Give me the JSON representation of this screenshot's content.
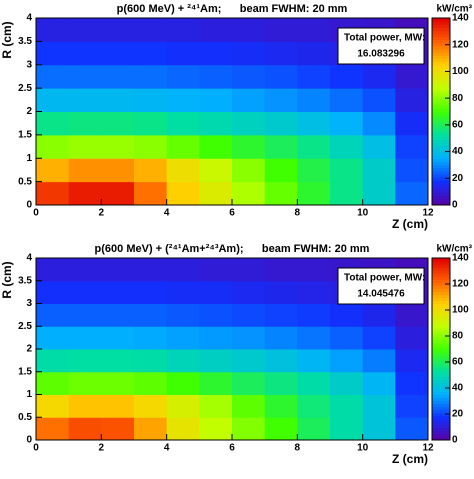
{
  "chart_data": [
    {
      "type": "heatmap",
      "title": "p(600 MeV) + ²⁴¹Am;      beam FWHM: 20 mm",
      "xlabel": "Z (cm)",
      "ylabel": "R (cm)",
      "zlabel": "kW/cm³",
      "xlim": [
        0,
        12
      ],
      "ylim": [
        0,
        4
      ],
      "zlim": [
        0,
        140
      ],
      "xticks": [
        0,
        2,
        4,
        6,
        8,
        10,
        12
      ],
      "yticks": [
        0,
        0.5,
        1,
        1.5,
        2,
        2.5,
        3,
        3.5,
        4
      ],
      "zticks": [
        0,
        20,
        40,
        60,
        80,
        100,
        120,
        140
      ],
      "annotation": {
        "label": "Total power, MW:",
        "value": 16.083296
      },
      "colormap": [
        "#5a00a0",
        "#1030ff",
        "#00b0ff",
        "#00e0a0",
        "#40ff00",
        "#c0ff00",
        "#ffd000",
        "#ff6000",
        "#e00000"
      ],
      "z": [
        [
          130,
          135,
          135,
          120,
          105,
          95,
          85,
          75,
          65,
          55,
          45,
          25
        ],
        [
          110,
          115,
          115,
          110,
          100,
          90,
          80,
          70,
          62,
          55,
          45,
          22
        ],
        [
          80,
          82,
          82,
          80,
          75,
          70,
          65,
          60,
          55,
          48,
          40,
          20
        ],
        [
          55,
          56,
          56,
          55,
          52,
          50,
          47,
          44,
          40,
          36,
          30,
          16
        ],
        [
          38,
          38,
          38,
          37,
          36,
          35,
          33,
          31,
          29,
          26,
          22,
          12
        ],
        [
          26,
          26,
          26,
          26,
          25,
          24,
          23,
          22,
          20,
          18,
          15,
          9
        ],
        [
          18,
          18,
          18,
          18,
          17,
          17,
          16,
          15,
          14,
          13,
          10,
          7
        ],
        [
          12,
          12,
          12,
          12,
          12,
          11,
          11,
          10,
          10,
          9,
          8,
          5
        ]
      ]
    },
    {
      "type": "heatmap",
      "title": "p(600 MeV) + (²⁴¹Am+²⁴³Am);      beam FWHM: 20 mm",
      "xlabel": "Z (cm)",
      "ylabel": "R (cm)",
      "zlabel": "kW/cm³",
      "xlim": [
        0,
        12
      ],
      "ylim": [
        0,
        4
      ],
      "zlim": [
        0,
        140
      ],
      "xticks": [
        0,
        2,
        4,
        6,
        8,
        10,
        12
      ],
      "yticks": [
        0,
        0.5,
        1,
        1.5,
        2,
        2.5,
        3,
        3.5,
        4
      ],
      "zticks": [
        0,
        20,
        40,
        60,
        80,
        100,
        120,
        140
      ],
      "annotation": {
        "label": "Total power, MW:",
        "value": 14.045476
      },
      "colormap": [
        "#5a00a0",
        "#1030ff",
        "#00b0ff",
        "#00e0a0",
        "#40ff00",
        "#c0ff00",
        "#ffd000",
        "#ff6000",
        "#e00000"
      ],
      "z": [
        [
          120,
          126,
          125,
          112,
          98,
          88,
          79,
          70,
          60,
          51,
          42,
          23
        ],
        [
          102,
          107,
          107,
          102,
          93,
          84,
          74,
          65,
          57,
          51,
          42,
          20
        ],
        [
          74,
          76,
          76,
          74,
          70,
          65,
          60,
          56,
          51,
          45,
          37,
          18
        ],
        [
          51,
          52,
          52,
          51,
          48,
          46,
          44,
          41,
          37,
          33,
          28,
          15
        ],
        [
          35,
          35,
          35,
          34,
          33,
          32,
          31,
          29,
          27,
          24,
          20,
          11
        ],
        [
          24,
          24,
          24,
          24,
          23,
          22,
          21,
          20,
          19,
          17,
          14,
          8
        ],
        [
          17,
          17,
          17,
          17,
          16,
          16,
          15,
          14,
          13,
          12,
          9,
          6
        ],
        [
          11,
          11,
          11,
          11,
          11,
          10,
          10,
          9,
          9,
          8,
          7,
          5
        ]
      ]
    }
  ]
}
